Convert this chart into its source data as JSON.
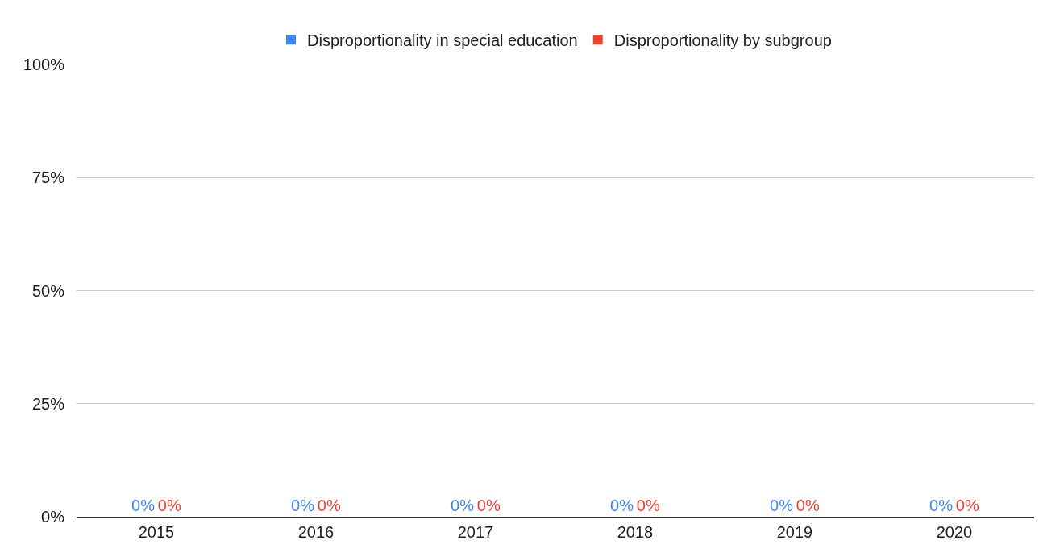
{
  "chart_data": {
    "type": "bar",
    "categories": [
      "2015",
      "2016",
      "2017",
      "2018",
      "2019",
      "2020"
    ],
    "series": [
      {
        "name": "Disproportionality in special education",
        "color": "#4285f4",
        "values": [
          0,
          0,
          0,
          0,
          0,
          0
        ],
        "value_labels": [
          "0%",
          "0%",
          "0%",
          "0%",
          "0%",
          "0%"
        ]
      },
      {
        "name": "Disproportionality by subgroup",
        "color": "#ea4335",
        "values": [
          0,
          0,
          0,
          0,
          0,
          0
        ],
        "value_labels": [
          "0%",
          "0%",
          "0%",
          "0%",
          "0%",
          "0%"
        ]
      }
    ],
    "ylim": [
      0,
      100
    ],
    "yticks": [
      {
        "value": 0,
        "label": "0%"
      },
      {
        "value": 25,
        "label": "25%"
      },
      {
        "value": 50,
        "label": "50%"
      },
      {
        "value": 75,
        "label": "75%"
      },
      {
        "value": 100,
        "label": "100%"
      }
    ],
    "grid": "y",
    "legend": "top"
  }
}
